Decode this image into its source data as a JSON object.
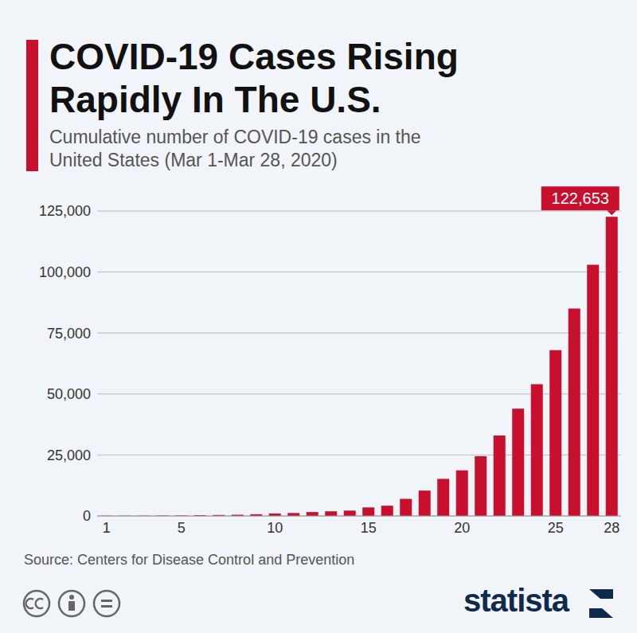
{
  "chart_data": {
    "type": "bar",
    "title": "COVID-19 Cases Rising Rapidly In The U.S.",
    "subtitle": "Cumulative number of COVID-19 cases in the United States (Mar 1-Mar 28, 2020)",
    "source": "Source: Centers for Disease Control and Prevention",
    "brand": "statista",
    "annotation": "122,653",
    "categories": [
      "1",
      null,
      null,
      null,
      "5",
      null,
      null,
      null,
      null,
      "10",
      null,
      null,
      null,
      null,
      "15",
      null,
      null,
      null,
      null,
      "20",
      null,
      null,
      null,
      null,
      "25",
      null,
      null,
      "28"
    ],
    "values": [
      50,
      80,
      100,
      150,
      200,
      300,
      400,
      500,
      700,
      1000,
      1200,
      1600,
      1900,
      2200,
      3500,
      4200,
      7000,
      10400,
      15200,
      18700,
      24500,
      33000,
      44000,
      54000,
      68000,
      85000,
      103000,
      122653
    ],
    "color": "#c8102e",
    "ylim": [
      0,
      125000
    ],
    "yticks": [
      0,
      {
        "value": 25000,
        "label": "25,000"
      },
      {
        "value": 50000,
        "label": "50,000"
      },
      {
        "value": 75000,
        "label": "75,000"
      },
      {
        "value": 100000,
        "label": "100,000"
      },
      {
        "value": 125000,
        "label": "125,000"
      }
    ],
    "grid": true
  }
}
